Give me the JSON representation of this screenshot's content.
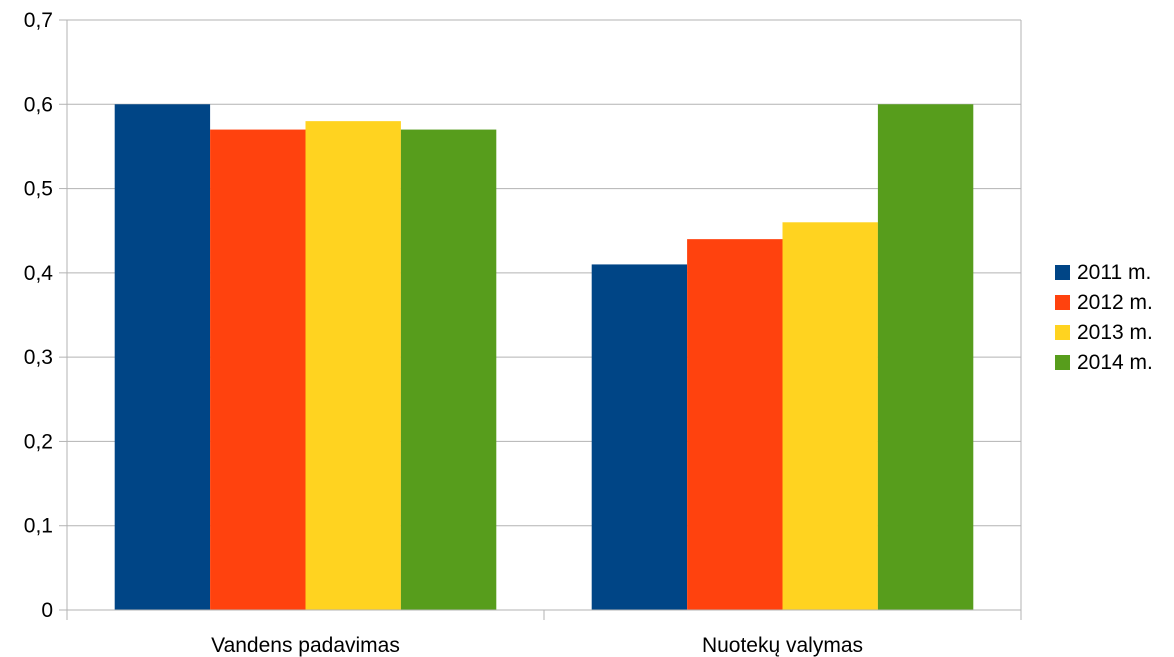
{
  "chart_data": {
    "type": "bar",
    "categories": [
      "Vandens padavimas",
      "Nuotekų valymas"
    ],
    "series": [
      {
        "name": "2011 m.",
        "color": "#004586",
        "values": [
          0.6,
          0.41
        ]
      },
      {
        "name": "2012 m.",
        "color": "#ff420e",
        "values": [
          0.57,
          0.44
        ]
      },
      {
        "name": "2013 m.",
        "color": "#ffd320",
        "values": [
          0.58,
          0.46
        ]
      },
      {
        "name": "2014 m.",
        "color": "#579d1c",
        "values": [
          0.57,
          0.6
        ]
      }
    ],
    "ylim": [
      0,
      0.7
    ],
    "yticks": [
      "0",
      "0,1",
      "0,2",
      "0,3",
      "0,4",
      "0,5",
      "0,6",
      "0,7"
    ],
    "grid": true,
    "legend": "right"
  }
}
